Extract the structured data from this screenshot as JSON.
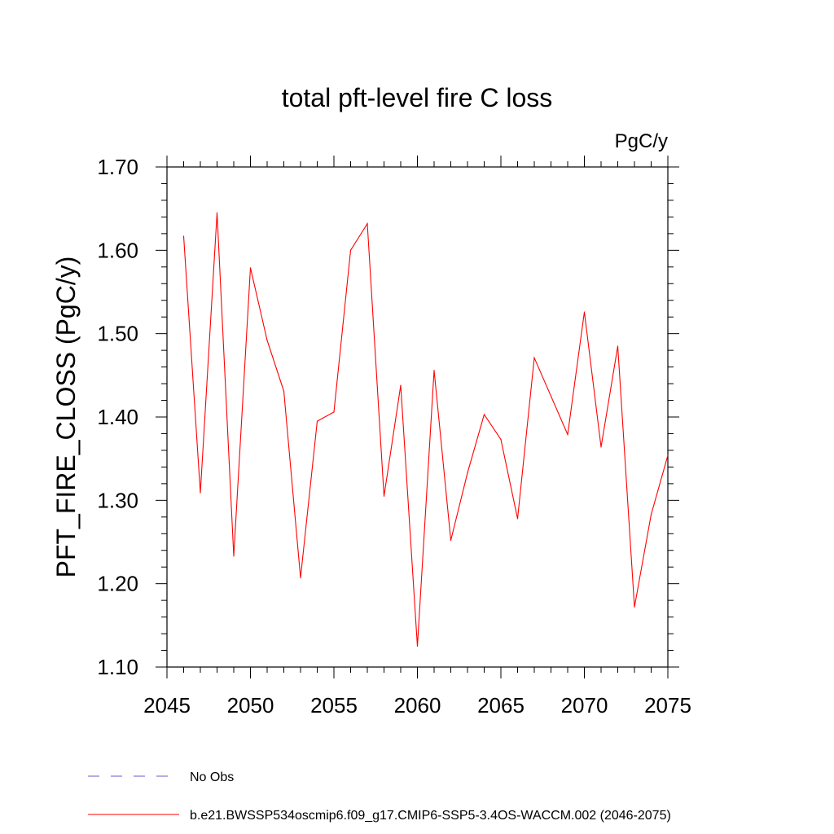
{
  "chart_data": {
    "type": "line",
    "title": "total pft-level fire C loss",
    "units_label": "PgC/y",
    "ylabel": "PFT_FIRE_CLOSS  (PgC/y)",
    "xlabel": "",
    "xlim": [
      2045,
      2075
    ],
    "ylim": [
      1.1,
      1.7
    ],
    "x_ticks": [
      2045,
      2050,
      2055,
      2060,
      2065,
      2070,
      2075
    ],
    "y_ticks": [
      1.1,
      1.2,
      1.3,
      1.4,
      1.5,
      1.6,
      1.7
    ],
    "x_tick_labels": [
      "2045",
      "2050",
      "2055",
      "2060",
      "2065",
      "2070",
      "2075"
    ],
    "y_tick_labels": [
      "1.10",
      "1.20",
      "1.30",
      "1.40",
      "1.50",
      "1.60",
      "1.70"
    ],
    "grid": false,
    "series": [
      {
        "name": "b.e21.BWSSP534oscmip6.f09_g17.CMIP6-SSP5-3.4OS-WACCM.002 (2046-2075)",
        "color": "#ff0000",
        "style": "solid",
        "x": [
          2046,
          2047,
          2048,
          2049,
          2050,
          2051,
          2052,
          2053,
          2054,
          2055,
          2056,
          2057,
          2058,
          2059,
          2060,
          2061,
          2062,
          2063,
          2064,
          2065,
          2066,
          2067,
          2068,
          2069,
          2070,
          2071,
          2072,
          2073,
          2074,
          2075
        ],
        "values": [
          1.617,
          1.309,
          1.645,
          1.233,
          1.579,
          1.492,
          1.431,
          1.207,
          1.395,
          1.406,
          1.6,
          1.632,
          1.305,
          1.438,
          1.125,
          1.456,
          1.252,
          1.333,
          1.403,
          1.373,
          1.278,
          1.471,
          1.425,
          1.379,
          1.526,
          1.364,
          1.485,
          1.172,
          1.283,
          1.354
        ]
      }
    ],
    "legend": {
      "placement": "bottom-left",
      "entries": [
        {
          "label": "No Obs",
          "color": "#6a5acd",
          "style": "dashed"
        },
        {
          "label": "b.e21.BWSSP534oscmip6.f09_g17.CMIP6-SSP5-3.4OS-WACCM.002 (2046-2075)",
          "color": "#ff0000",
          "style": "solid"
        }
      ]
    }
  }
}
